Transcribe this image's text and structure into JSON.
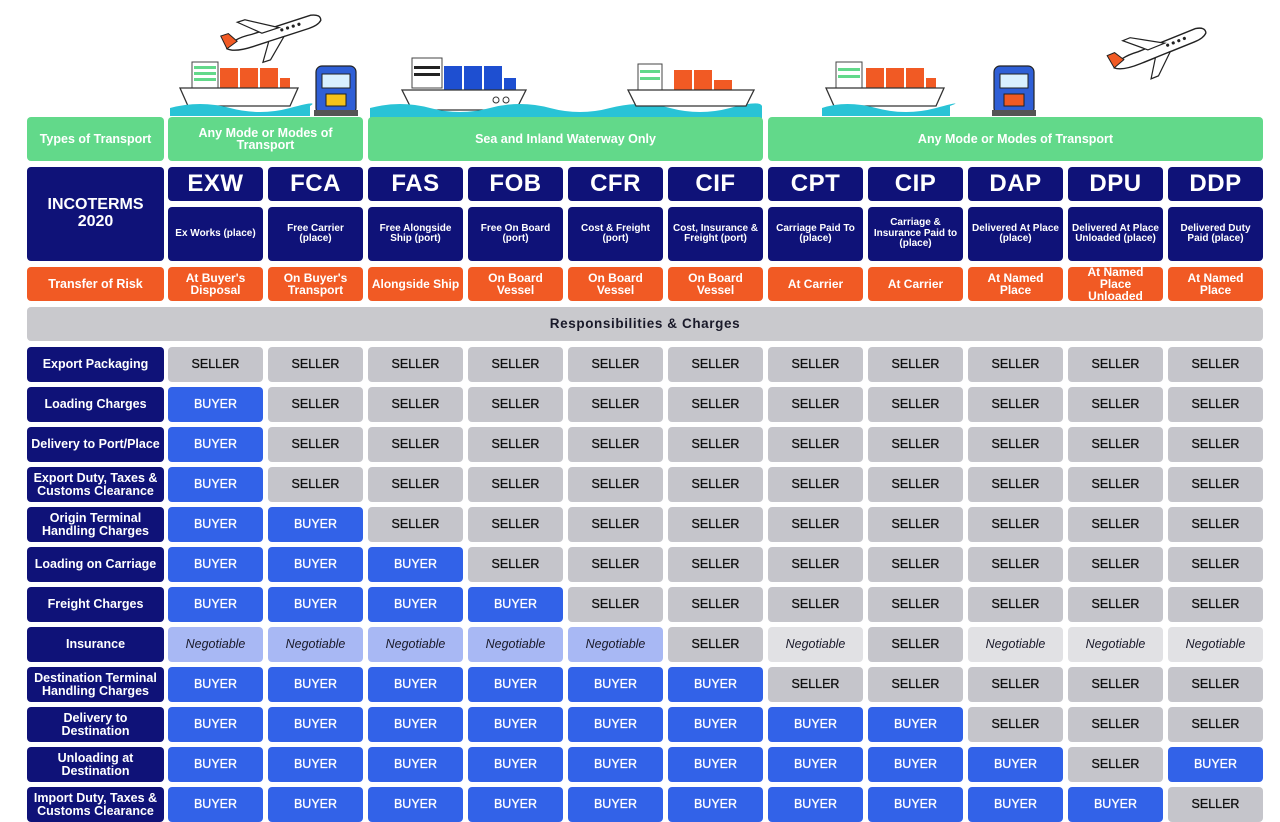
{
  "transport_label": "Types of Transport",
  "transport_groups": [
    {
      "label": "Any Mode or Modes of Transport"
    },
    {
      "label": "Sea and Inland Waterway Only"
    },
    {
      "label": "Any Mode or Modes of Transport"
    }
  ],
  "title": "INCOTERMS 2020",
  "risk_label": "Transfer of Risk",
  "terms": [
    {
      "code": "EXW",
      "name": "Ex Works (place)",
      "risk": "At Buyer's Disposal"
    },
    {
      "code": "FCA",
      "name": "Free Carrier (place)",
      "risk": "On Buyer's Transport"
    },
    {
      "code": "FAS",
      "name": "Free Alongside Ship (port)",
      "risk": "Alongside Ship"
    },
    {
      "code": "FOB",
      "name": "Free On Board (port)",
      "risk": "On Board Vessel"
    },
    {
      "code": "CFR",
      "name": "Cost & Freight (port)",
      "risk": "On Board Vessel"
    },
    {
      "code": "CIF",
      "name": "Cost, Insurance & Freight (port)",
      "risk": "On Board Vessel"
    },
    {
      "code": "CPT",
      "name": "Carriage Paid To (place)",
      "risk": "At Carrier"
    },
    {
      "code": "CIP",
      "name": "Carriage & Insurance Paid to (place)",
      "risk": "At Carrier"
    },
    {
      "code": "DAP",
      "name": "Delivered At Place (place)",
      "risk": "At Named Place"
    },
    {
      "code": "DPU",
      "name": "Delivered At Place Unloaded (place)",
      "risk": "At Named Place Unloaded"
    },
    {
      "code": "DDP",
      "name": "Delivered Duty Paid (place)",
      "risk": "At Named Place"
    }
  ],
  "responsibilities_title": "Responsibilities & Charges",
  "rows": [
    {
      "label": "Export Packaging",
      "values": [
        "SELLER",
        "SELLER",
        "SELLER",
        "SELLER",
        "SELLER",
        "SELLER",
        "SELLER",
        "SELLER",
        "SELLER",
        "SELLER",
        "SELLER"
      ]
    },
    {
      "label": "Loading Charges",
      "values": [
        "BUYER",
        "SELLER",
        "SELLER",
        "SELLER",
        "SELLER",
        "SELLER",
        "SELLER",
        "SELLER",
        "SELLER",
        "SELLER",
        "SELLER"
      ]
    },
    {
      "label": "Delivery to Port/Place",
      "values": [
        "BUYER",
        "SELLER",
        "SELLER",
        "SELLER",
        "SELLER",
        "SELLER",
        "SELLER",
        "SELLER",
        "SELLER",
        "SELLER",
        "SELLER"
      ]
    },
    {
      "label": "Export Duty, Taxes & Customs Clearance",
      "values": [
        "BUYER",
        "SELLER",
        "SELLER",
        "SELLER",
        "SELLER",
        "SELLER",
        "SELLER",
        "SELLER",
        "SELLER",
        "SELLER",
        "SELLER"
      ]
    },
    {
      "label": "Origin Terminal Handling Charges",
      "values": [
        "BUYER",
        "BUYER",
        "SELLER",
        "SELLER",
        "SELLER",
        "SELLER",
        "SELLER",
        "SELLER",
        "SELLER",
        "SELLER",
        "SELLER"
      ]
    },
    {
      "label": "Loading on Carriage",
      "values": [
        "BUYER",
        "BUYER",
        "BUYER",
        "SELLER",
        "SELLER",
        "SELLER",
        "SELLER",
        "SELLER",
        "SELLER",
        "SELLER",
        "SELLER"
      ]
    },
    {
      "label": "Freight Charges",
      "values": [
        "BUYER",
        "BUYER",
        "BUYER",
        "BUYER",
        "SELLER",
        "SELLER",
        "SELLER",
        "SELLER",
        "SELLER",
        "SELLER",
        "SELLER"
      ]
    },
    {
      "label": "Insurance",
      "values": [
        "Negotiable",
        "Negotiable",
        "Negotiable",
        "Negotiable",
        "Negotiable",
        "SELLER",
        "Negotiable",
        "SELLER",
        "Negotiable",
        "Negotiable",
        "Negotiable"
      ]
    },
    {
      "label": "Destination Terminal Handling Charges",
      "values": [
        "BUYER",
        "BUYER",
        "BUYER",
        "BUYER",
        "BUYER",
        "BUYER",
        "SELLER",
        "SELLER",
        "SELLER",
        "SELLER",
        "SELLER"
      ]
    },
    {
      "label": "Delivery to Destination",
      "values": [
        "BUYER",
        "BUYER",
        "BUYER",
        "BUYER",
        "BUYER",
        "BUYER",
        "BUYER",
        "BUYER",
        "SELLER",
        "SELLER",
        "SELLER"
      ]
    },
    {
      "label": "Unloading at Destination",
      "values": [
        "BUYER",
        "BUYER",
        "BUYER",
        "BUYER",
        "BUYER",
        "BUYER",
        "BUYER",
        "BUYER",
        "BUYER",
        "SELLER",
        "BUYER"
      ]
    },
    {
      "label": "Import Duty, Taxes & Customs Clearance",
      "values": [
        "BUYER",
        "BUYER",
        "BUYER",
        "BUYER",
        "BUYER",
        "BUYER",
        "BUYER",
        "BUYER",
        "BUYER",
        "BUYER",
        "SELLER"
      ]
    }
  ],
  "colors": {
    "green": "#62d98a",
    "navy": "#0f1278",
    "orange": "#f15a24",
    "seller": "#c5c5cb",
    "buyer": "#3262e8",
    "negotiable_buyer_side": "#a8b8f4",
    "negotiable_seller_side": "#e1e1e4"
  }
}
